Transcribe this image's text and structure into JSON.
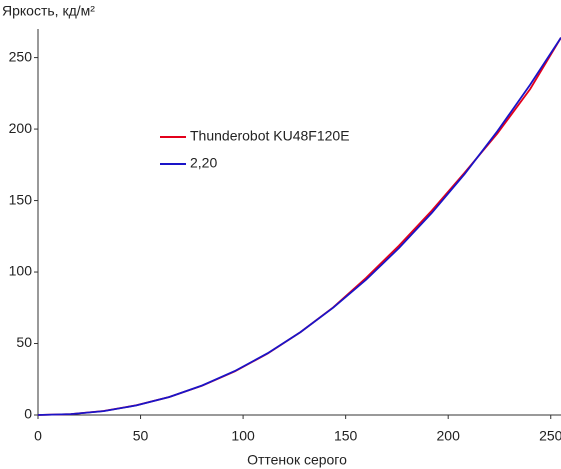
{
  "chart_data": {
    "type": "line",
    "ylabel": "Яркость, кд/м²",
    "xlabel": "Оттенок серого",
    "x": [
      0,
      16,
      32,
      48,
      64,
      80,
      96,
      112,
      128,
      144,
      160,
      176,
      192,
      208,
      224,
      240,
      255
    ],
    "series": [
      {
        "name": "Thunderobot KU48F120E",
        "color": "#e3001b",
        "values": [
          0,
          0.6,
          2.8,
          6.8,
          12.6,
          20.5,
          30.6,
          43.0,
          58.0,
          75.3,
          96.0,
          118.5,
          143.0,
          169.5,
          197,
          228,
          264
        ]
      },
      {
        "name": "2,20",
        "color": "#1a14c8",
        "values": [
          0,
          0.6,
          2.7,
          6.7,
          12.6,
          20.6,
          30.8,
          43.2,
          58.0,
          75.1,
          94.7,
          116.8,
          141.4,
          168.6,
          198.5,
          231.1,
          264
        ]
      }
    ],
    "xlim": [
      0,
      255
    ],
    "ylim": [
      0,
      270
    ],
    "xticks": [
      0,
      50,
      100,
      150,
      200,
      250
    ],
    "yticks": [
      0,
      50,
      100,
      150,
      200,
      250
    ],
    "grid": false,
    "legend": "upper left"
  }
}
